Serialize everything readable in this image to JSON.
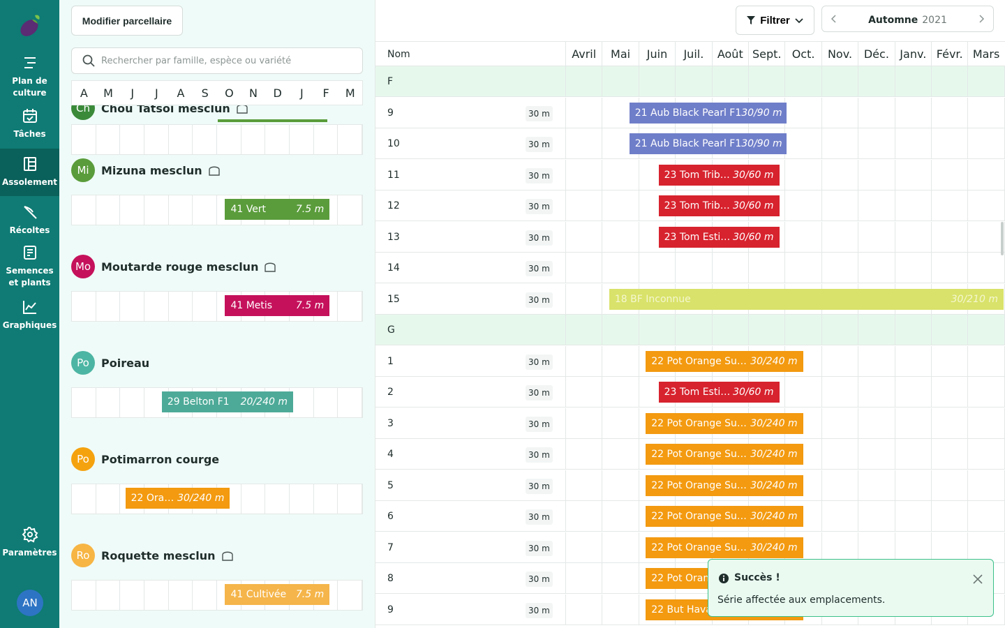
{
  "sidebar": {
    "items": [
      {
        "label": "Plan de culture",
        "icon": "plan-icon"
      },
      {
        "label": "Tâches",
        "icon": "calendar-icon"
      },
      {
        "label": "Assolement",
        "icon": "layout-icon",
        "active": true
      },
      {
        "label": "Récoltes",
        "icon": "knife-icon"
      },
      {
        "label": "Semences et plants",
        "icon": "seed-icon"
      },
      {
        "label": "Graphiques",
        "icon": "chart-icon"
      },
      {
        "label": "Paramètres",
        "icon": "gear-icon"
      }
    ],
    "avatar": "AN"
  },
  "left": {
    "modify_label": "Modifier parcellaire",
    "search_placeholder": "Rechercher par famille, espèce ou variété",
    "months": [
      "A",
      "M",
      "J",
      "J",
      "A",
      "S",
      "O",
      "N",
      "D",
      "J",
      "F",
      "M"
    ],
    "crops": [
      {
        "circle": "Ch",
        "name": "Chou Tatsoi mesclun",
        "color": "#3b8a3a",
        "bar_label": "",
        "bar_qty": "",
        "bar_color": "#5a9c3b"
      },
      {
        "circle": "Mi",
        "name": "Mizuna mesclun",
        "color": "#5a9c3b",
        "bar_label": "41 Vert",
        "bar_qty": "7.5 m",
        "bar_color": "#5a9c3b"
      },
      {
        "circle": "Mo",
        "name": "Moutarde rouge mesclun",
        "color": "#c5115b",
        "bar_label": "41 Metis",
        "bar_qty": "7.5 m",
        "bar_color": "#c5115b"
      },
      {
        "circle": "Po",
        "name": "Poireau",
        "color": "#4db5a3",
        "bar_label": "29 Belton F1",
        "bar_qty": "20/240 m",
        "bar_color": "#4daa98"
      },
      {
        "circle": "Po",
        "name": "Potimarron courge",
        "color": "#f5a20f",
        "bar_label": "22 Ora…",
        "bar_qty": "30/240 m",
        "bar_color": "#f39a10"
      },
      {
        "circle": "Ro",
        "name": "Roquette mesclun",
        "color": "#f7b544",
        "bar_label": "41 Cultivée",
        "bar_qty": "7.5 m",
        "bar_color": "#f5b54a"
      }
    ]
  },
  "right": {
    "filter_label": "Filtrer",
    "season_label": "Automne",
    "season_year": "2021",
    "column_name": "Nom",
    "months": [
      "Avril",
      "Mai",
      "Juin",
      "Juil.",
      "Août",
      "Sept.",
      "Oct.",
      "Nov.",
      "Déc.",
      "Janv.",
      "Févr.",
      "Mars"
    ],
    "rows": [
      {
        "type": "group",
        "name": "F"
      },
      {
        "type": "row",
        "name": "9",
        "size": "30 m",
        "bar": {
          "label": "21 Aub Black Pearl F1",
          "qty": "30/90 m",
          "color": "#6f7ec9"
        }
      },
      {
        "type": "row",
        "name": "10",
        "size": "30 m",
        "bar": {
          "label": "21 Aub Black Pearl F1",
          "qty": "30/90 m",
          "color": "#6f7ec9"
        }
      },
      {
        "type": "row",
        "name": "11",
        "size": "30 m",
        "bar": {
          "label": "23 Tom Trib…",
          "qty": "30/60 m",
          "color": "#d7232e"
        }
      },
      {
        "type": "row",
        "name": "12",
        "size": "30 m",
        "bar": {
          "label": "23 Tom Trib…",
          "qty": "30/60 m",
          "color": "#d7232e"
        }
      },
      {
        "type": "row",
        "name": "13",
        "size": "30 m",
        "bar": {
          "label": "23 Tom Esti…",
          "qty": "30/60 m",
          "color": "#d7232e"
        }
      },
      {
        "type": "row",
        "name": "14",
        "size": "30 m",
        "bar": null
      },
      {
        "type": "row",
        "name": "15",
        "size": "30 m",
        "bar": {
          "label": "18 BF Inconnue",
          "qty": "30/210 m",
          "color": "#d9e26a"
        }
      },
      {
        "type": "group",
        "name": "G"
      },
      {
        "type": "row",
        "name": "1",
        "size": "30 m",
        "bar": {
          "label": "22 Pot Orange Su…",
          "qty": "30/240 m",
          "color": "#f39a10"
        }
      },
      {
        "type": "row",
        "name": "2",
        "size": "30 m",
        "bar": {
          "label": "23 Tom Esti…",
          "qty": "30/60 m",
          "color": "#d7232e"
        }
      },
      {
        "type": "row",
        "name": "3",
        "size": "30 m",
        "bar": {
          "label": "22 Pot Orange Su…",
          "qty": "30/240 m",
          "color": "#f39a10"
        }
      },
      {
        "type": "row",
        "name": "4",
        "size": "30 m",
        "bar": {
          "label": "22 Pot Orange Su…",
          "qty": "30/240 m",
          "color": "#f39a10"
        }
      },
      {
        "type": "row",
        "name": "5",
        "size": "30 m",
        "bar": {
          "label": "22 Pot Orange Su…",
          "qty": "30/240 m",
          "color": "#f39a10"
        }
      },
      {
        "type": "row",
        "name": "6",
        "size": "30 m",
        "bar": {
          "label": "22 Pot Orange Su…",
          "qty": "30/240 m",
          "color": "#f39a10"
        }
      },
      {
        "type": "row",
        "name": "7",
        "size": "30 m",
        "bar": {
          "label": "22 Pot Orange Su…",
          "qty": "30/240 m",
          "color": "#f39a10"
        }
      },
      {
        "type": "row",
        "name": "8",
        "size": "30 m",
        "bar": {
          "label": "22 Pot Orange Su…",
          "qty": "30/240 m",
          "color": "#f39a10"
        }
      },
      {
        "type": "row",
        "name": "9",
        "size": "30 m",
        "bar": {
          "label": "22 But Havana F1",
          "qty": "30/150 m",
          "color": "#f39a10"
        }
      }
    ]
  },
  "toast": {
    "title": "Succès !",
    "message": "Série affectée aux emplacements."
  }
}
